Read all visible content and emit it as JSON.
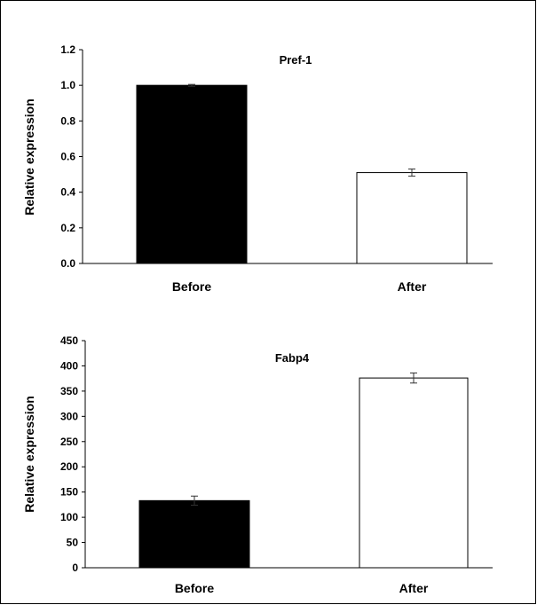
{
  "chart_data": [
    {
      "type": "bar",
      "title": "Pref-1",
      "xlabel": "",
      "ylabel": "Relative expression",
      "categories": [
        "Before",
        "After"
      ],
      "values": [
        1.0,
        0.51
      ],
      "errors": [
        0.005,
        0.02
      ],
      "bar_colors": [
        "#000000",
        "#ffffff"
      ],
      "ylim": [
        0,
        1.2
      ],
      "yticks": [
        "0.0",
        "0.2",
        "0.4",
        "0.6",
        "0.8",
        "1.0",
        "1.2"
      ],
      "grid": false,
      "legend": "none"
    },
    {
      "type": "bar",
      "title": "Fabp4",
      "xlabel": "",
      "ylabel": "Relative expression",
      "categories": [
        "Before",
        "After"
      ],
      "values": [
        133,
        376
      ],
      "errors": [
        9,
        10
      ],
      "bar_colors": [
        "#000000",
        "#ffffff"
      ],
      "ylim": [
        0,
        450
      ],
      "yticks": [
        "0",
        "50",
        "100",
        "150",
        "200",
        "250",
        "300",
        "350",
        "400",
        "450"
      ],
      "grid": false,
      "legend": "none"
    }
  ]
}
